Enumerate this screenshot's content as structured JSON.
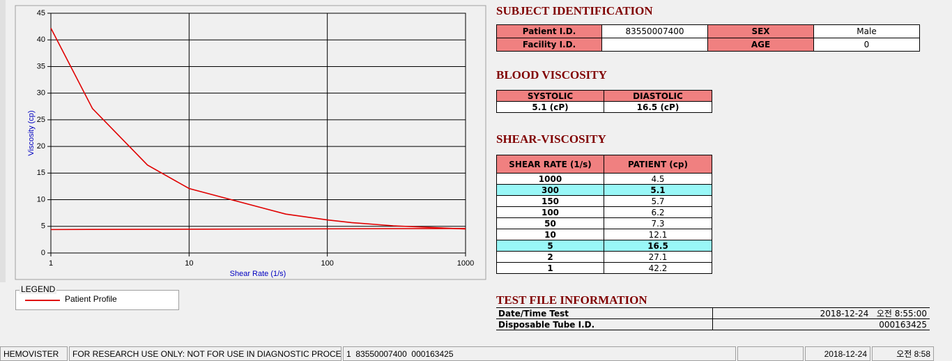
{
  "chart_data": {
    "type": "line",
    "xlabel": "Shear Rate (1/s)",
    "ylabel": "Viscosity (cp)",
    "log_x": true,
    "grid": true,
    "xlim": [
      1,
      1000
    ],
    "xticks": [
      1,
      10,
      100,
      1000
    ],
    "ylim": [
      0,
      45
    ],
    "yticks": [
      0,
      5,
      10,
      15,
      20,
      25,
      30,
      35,
      40,
      45
    ],
    "legend_title": "LEGEND",
    "series": [
      {
        "name": "Patient Profile",
        "color": "#e00000",
        "x": [
          1,
          2,
          5,
          10,
          50,
          100,
          150,
          300,
          1000
        ],
        "values": [
          42.2,
          27.1,
          16.5,
          12.1,
          7.3,
          6.2,
          5.7,
          5.1,
          4.5
        ]
      },
      {
        "color": "#e00000",
        "x": [
          1,
          1000
        ],
        "values": [
          4.4,
          4.6
        ]
      }
    ]
  },
  "subject": {
    "title": "SUBJECT IDENTIFICATION",
    "fields": [
      {
        "label": "Patient I.D.",
        "value": "83550007400"
      },
      {
        "label": "SEX",
        "value": "Male"
      },
      {
        "label": "Facility I.D."
      },
      {
        "label": "AGE",
        "value": "0"
      }
    ]
  },
  "blood": {
    "title": "BLOOD VISCOSITY",
    "headers": [
      "SYSTOLIC",
      "DIASTOLIC"
    ],
    "values": [
      "5.1 (cP)",
      "16.5 (cP)"
    ]
  },
  "shear": {
    "title": "SHEAR-VISCOSITY",
    "headers": [
      "SHEAR RATE (1/s)",
      "PATIENT (cp)"
    ],
    "rows": [
      {
        "rate": "1000",
        "value": "4.5"
      },
      {
        "rate": "300",
        "value": "5.1",
        "highlight": true
      },
      {
        "rate": "150",
        "value": "5.7"
      },
      {
        "rate": "100",
        "value": "6.2"
      },
      {
        "rate": "50",
        "value": "7.3"
      },
      {
        "rate": "10",
        "value": "12.1"
      },
      {
        "rate": "5",
        "value": "16.5",
        "highlight": true
      },
      {
        "rate": "2",
        "value": "27.1"
      },
      {
        "rate": "1",
        "value": "42.2"
      }
    ]
  },
  "test_file": {
    "title": "TEST FILE INFORMATION",
    "rows": [
      {
        "label": "Date/Time Test",
        "value": "2018-12-24   오전 8:55:00"
      },
      {
        "label": "Disposable Tube I.D.",
        "value": "000163425"
      }
    ]
  },
  "status_bar": [
    "HEMOVISTER",
    "FOR RESEARCH USE ONLY: NOT FOR USE IN DIAGNOSTIC PROCEDURES",
    "1  83550007400  000163425",
    "2018-12-24",
    "오전 8:58"
  ]
}
